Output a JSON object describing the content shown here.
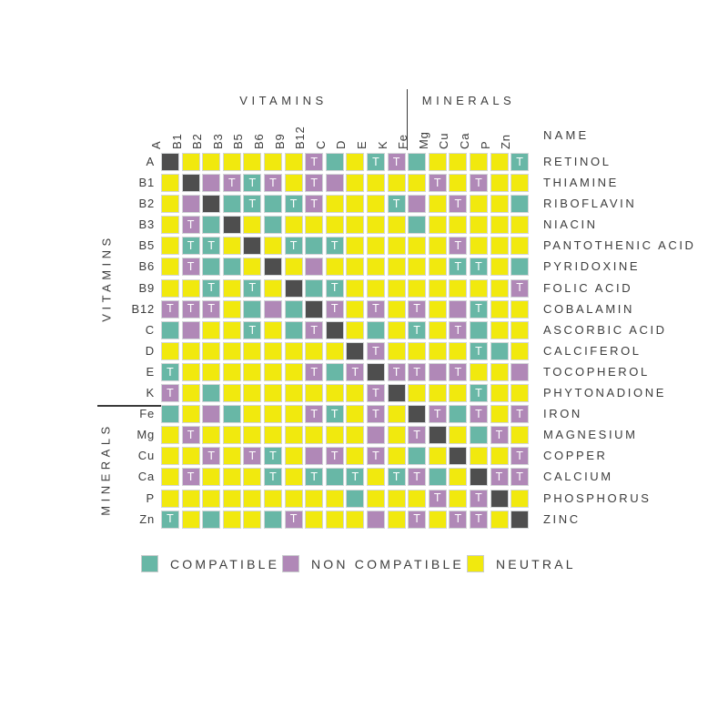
{
  "headers": {
    "vitamins": "VITAMINS",
    "minerals": "MINERALS",
    "name": "NAME"
  },
  "colors": {
    "compatible": "#68b7a6",
    "non_compatible": "#b088b7",
    "neutral": "#f1e90e",
    "self": "#4e4e4e",
    "text": "#3c3c3c"
  },
  "legend": [
    {
      "label": "COMPATIBLE",
      "color": "#68b7a6"
    },
    {
      "label": "NON COMPATIBLE",
      "color": "#b088b7"
    },
    {
      "label": "NEUTRAL",
      "color": "#f1e90e"
    }
  ],
  "chart_data": {
    "type": "heatmap",
    "t_marker": "T",
    "cell_codes": {
      "S": "self (diagonal, dark)",
      "C": "compatible (teal)",
      "N": "non compatible (purple)",
      "Y": "neutral (yellow)",
      "suffix T": "white letter T shown in cell"
    },
    "columns": [
      "A",
      "B1",
      "B2",
      "B3",
      "B5",
      "B6",
      "B9",
      "B12",
      "C",
      "D",
      "E",
      "K",
      "Fe",
      "Mg",
      "Cu",
      "Ca",
      "P",
      "Zn"
    ],
    "vitamin_column_count": 12,
    "rows": [
      {
        "id": "A",
        "name": "RETINOL",
        "cells": [
          "S",
          "Y",
          "Y",
          "Y",
          "Y",
          "Y",
          "Y",
          "NT",
          "C",
          "Y",
          "CT",
          "NT",
          "C",
          "Y",
          "Y",
          "Y",
          "Y",
          "CT"
        ]
      },
      {
        "id": "B1",
        "name": "THIAMINE",
        "cells": [
          "Y",
          "S",
          "N",
          "NT",
          "CT",
          "NT",
          "Y",
          "NT",
          "N",
          "Y",
          "Y",
          "Y",
          "Y",
          "NT",
          "Y",
          "NT",
          "Y",
          "Y"
        ]
      },
      {
        "id": "B2",
        "name": "RIBOFLAVIN",
        "cells": [
          "Y",
          "N",
          "S",
          "C",
          "CT",
          "C",
          "CT",
          "NT",
          "Y",
          "Y",
          "Y",
          "CT",
          "N",
          "Y",
          "NT",
          "Y",
          "Y",
          "C"
        ]
      },
      {
        "id": "B3",
        "name": "NIACIN",
        "cells": [
          "Y",
          "NT",
          "C",
          "S",
          "Y",
          "C",
          "Y",
          "Y",
          "Y",
          "Y",
          "Y",
          "Y",
          "C",
          "Y",
          "Y",
          "Y",
          "Y",
          "Y"
        ]
      },
      {
        "id": "B5",
        "name": "PANTOTHENIC ACID",
        "cells": [
          "Y",
          "CT",
          "CT",
          "Y",
          "S",
          "Y",
          "CT",
          "C",
          "CT",
          "Y",
          "Y",
          "Y",
          "Y",
          "Y",
          "NT",
          "Y",
          "Y",
          "Y"
        ]
      },
      {
        "id": "B6",
        "name": "PYRIDOXINE",
        "cells": [
          "Y",
          "NT",
          "C",
          "C",
          "Y",
          "S",
          "Y",
          "N",
          "Y",
          "Y",
          "Y",
          "Y",
          "Y",
          "Y",
          "CT",
          "CT",
          "Y",
          "C"
        ]
      },
      {
        "id": "B9",
        "name": "FOLIC ACID",
        "cells": [
          "Y",
          "Y",
          "CT",
          "Y",
          "CT",
          "Y",
          "S",
          "C",
          "CT",
          "Y",
          "Y",
          "Y",
          "Y",
          "Y",
          "Y",
          "Y",
          "Y",
          "NT"
        ]
      },
      {
        "id": "B12",
        "name": "COBALAMIN",
        "cells": [
          "NT",
          "NT",
          "NT",
          "Y",
          "C",
          "N",
          "C",
          "S",
          "NT",
          "Y",
          "NT",
          "Y",
          "NT",
          "Y",
          "N",
          "CT",
          "Y",
          "Y"
        ]
      },
      {
        "id": "C",
        "name": "ASCORBIC ACID",
        "cells": [
          "C",
          "N",
          "Y",
          "Y",
          "CT",
          "Y",
          "C",
          "NT",
          "S",
          "Y",
          "C",
          "Y",
          "CT",
          "Y",
          "NT",
          "C",
          "Y",
          "Y"
        ]
      },
      {
        "id": "D",
        "name": "CALCIFEROL",
        "cells": [
          "Y",
          "Y",
          "Y",
          "Y",
          "Y",
          "Y",
          "Y",
          "Y",
          "Y",
          "S",
          "NT",
          "Y",
          "Y",
          "Y",
          "Y",
          "CT",
          "C",
          "Y"
        ]
      },
      {
        "id": "E",
        "name": "TOCOPHEROL",
        "cells": [
          "CT",
          "Y",
          "Y",
          "Y",
          "Y",
          "Y",
          "Y",
          "NT",
          "C",
          "NT",
          "S",
          "NT",
          "NT",
          "N",
          "NT",
          "Y",
          "Y",
          "N"
        ]
      },
      {
        "id": "K",
        "name": "PHYTONADIONE",
        "cells": [
          "NT",
          "Y",
          "C",
          "Y",
          "Y",
          "Y",
          "Y",
          "Y",
          "Y",
          "Y",
          "NT",
          "S",
          "Y",
          "Y",
          "Y",
          "CT",
          "Y",
          "Y"
        ]
      },
      {
        "id": "Fe",
        "name": "IRON",
        "cells": [
          "C",
          "Y",
          "N",
          "C",
          "Y",
          "Y",
          "Y",
          "NT",
          "CT",
          "Y",
          "NT",
          "Y",
          "S",
          "NT",
          "C",
          "NT",
          "Y",
          "NT"
        ]
      },
      {
        "id": "Mg",
        "name": "MAGNESIUM",
        "cells": [
          "Y",
          "NT",
          "Y",
          "Y",
          "Y",
          "Y",
          "Y",
          "Y",
          "Y",
          "Y",
          "N",
          "Y",
          "NT",
          "S",
          "Y",
          "C",
          "NT",
          "Y"
        ]
      },
      {
        "id": "Cu",
        "name": "COPPER",
        "cells": [
          "Y",
          "Y",
          "NT",
          "Y",
          "NT",
          "CT",
          "Y",
          "N",
          "NT",
          "Y",
          "NT",
          "Y",
          "C",
          "Y",
          "S",
          "Y",
          "Y",
          "NT"
        ]
      },
      {
        "id": "Ca",
        "name": "CALCIUM",
        "cells": [
          "Y",
          "NT",
          "Y",
          "Y",
          "Y",
          "CT",
          "Y",
          "CT",
          "C",
          "CT",
          "Y",
          "CT",
          "NT",
          "C",
          "Y",
          "S",
          "NT",
          "NT"
        ]
      },
      {
        "id": "P",
        "name": "PHOSPHORUS",
        "cells": [
          "Y",
          "Y",
          "Y",
          "Y",
          "Y",
          "Y",
          "Y",
          "Y",
          "Y",
          "C",
          "Y",
          "Y",
          "Y",
          "NT",
          "Y",
          "NT",
          "S",
          "Y"
        ]
      },
      {
        "id": "Zn",
        "name": "ZINC",
        "cells": [
          "CT",
          "Y",
          "C",
          "Y",
          "Y",
          "C",
          "NT",
          "Y",
          "Y",
          "Y",
          "N",
          "Y",
          "NT",
          "Y",
          "NT",
          "NT",
          "Y",
          "S"
        ]
      }
    ]
  }
}
